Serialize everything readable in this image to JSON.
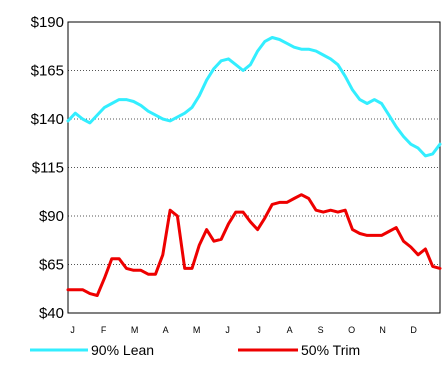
{
  "chart_data": {
    "type": "line",
    "title": "",
    "xlabel": "",
    "ylabel": "",
    "ylim": [
      40,
      190
    ],
    "y_ticks": [
      "$40",
      "$65",
      "$90",
      "$115",
      "$140",
      "$165",
      "$190"
    ],
    "y_tick_values": [
      40,
      65,
      90,
      115,
      140,
      165,
      190
    ],
    "x_ticks": [
      "J",
      "F",
      "M",
      "A",
      "M",
      "J",
      "J",
      "A",
      "S",
      "O",
      "N",
      "D"
    ],
    "grid": true,
    "legend_placement": "bottom",
    "x": [
      1,
      2,
      3,
      4,
      5,
      6,
      7,
      8,
      9,
      10,
      11,
      12,
      13,
      14,
      15,
      16,
      17,
      18,
      19,
      20,
      21,
      22,
      23,
      24,
      25,
      26,
      27,
      28,
      29,
      30,
      31,
      32,
      33,
      34,
      35,
      36,
      37,
      38,
      39,
      40,
      41,
      42,
      43,
      44,
      45,
      46,
      47,
      48,
      49,
      50,
      51,
      52
    ],
    "series": [
      {
        "name": "90% Lean",
        "color": "#33eeff",
        "values": [
          139,
          143,
          140,
          138,
          142,
          146,
          148,
          150,
          150,
          149,
          147,
          144,
          142,
          140,
          139,
          141,
          143,
          146,
          152,
          160,
          166,
          170,
          171,
          168,
          165,
          168,
          175,
          180,
          182,
          181,
          179,
          177,
          176,
          176,
          175,
          173,
          171,
          168,
          162,
          155,
          150,
          148,
          150,
          148,
          142,
          136,
          131,
          127,
          125,
          121,
          122,
          127
        ]
      },
      {
        "name": "50% Trim",
        "color": "#ee0000",
        "values": [
          52,
          52,
          52,
          50,
          49,
          58,
          68,
          68,
          63,
          62,
          62,
          60,
          60,
          70,
          93,
          90,
          63,
          63,
          75,
          83,
          77,
          78,
          86,
          92,
          92,
          87,
          83,
          89,
          96,
          97,
          97,
          99,
          101,
          99,
          93,
          92,
          93,
          92,
          93,
          83,
          81,
          80,
          80,
          80,
          82,
          84,
          77,
          74,
          70,
          73,
          64,
          63
        ]
      }
    ]
  }
}
